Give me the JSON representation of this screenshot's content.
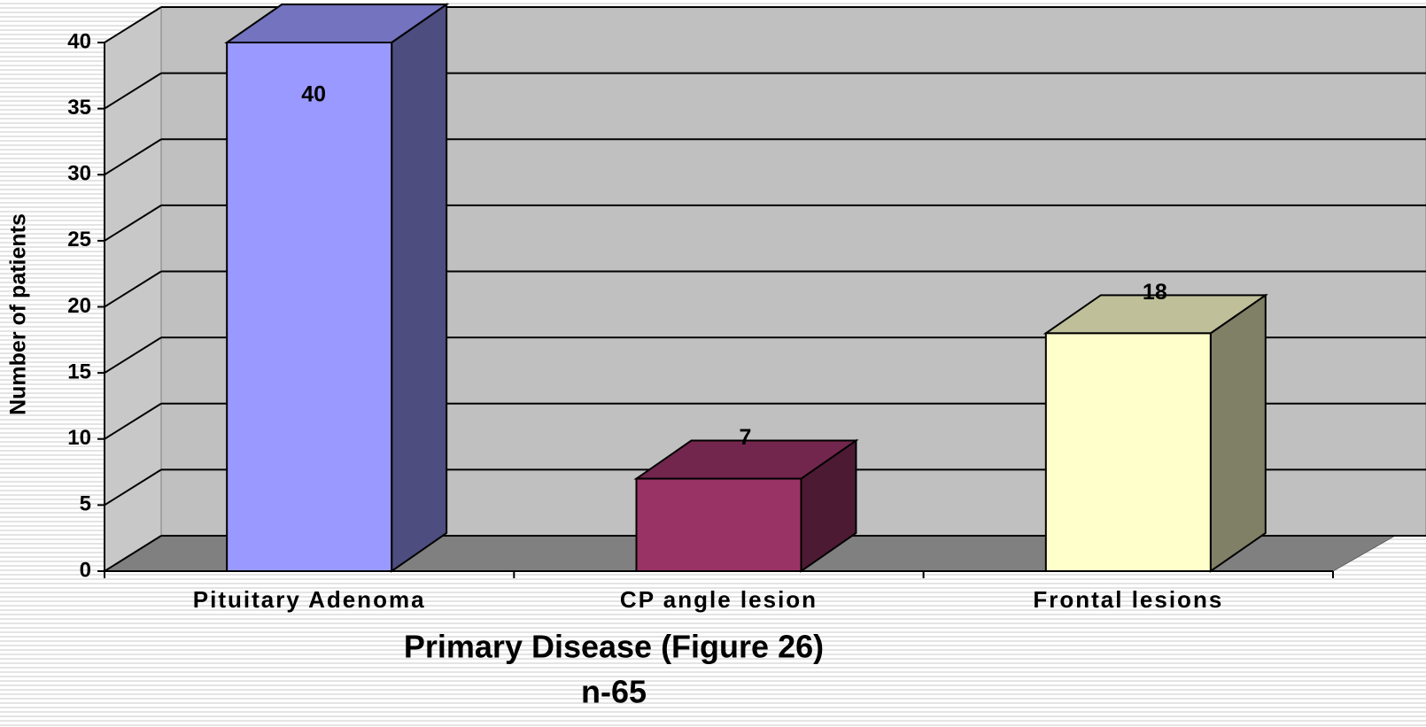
{
  "chart_data": {
    "type": "bar3d",
    "title": "Primary Disease (Figure 26)",
    "subtitle": "n-65",
    "y_label": "Number of patients",
    "categories": [
      "Pituitary Adenoma",
      "CP angle lesion",
      "Frontal lesions"
    ],
    "values": [
      40,
      7,
      18
    ],
    "colors": [
      "#9999ff",
      "#993366",
      "#ffffcc"
    ],
    "ylim": [
      0,
      40
    ],
    "yticks": [
      0,
      5,
      10,
      15,
      20,
      25,
      30,
      35,
      40
    ],
    "grid": true
  }
}
